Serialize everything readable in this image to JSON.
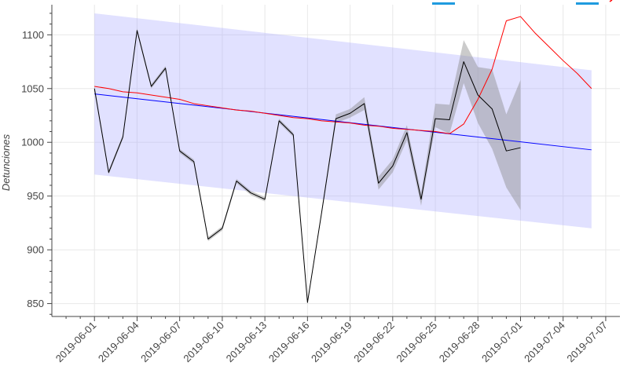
{
  "chart_data": {
    "type": "line",
    "title": "",
    "xlabel": "",
    "ylabel": "Detunciones",
    "ylim": [
      838,
      1128
    ],
    "xlim": [
      "2019-05-29",
      "2019-07-08"
    ],
    "grid": true,
    "xticks": [
      "2019-06-01",
      "2019-06-04",
      "2019-06-07",
      "2019-06-10",
      "2019-06-13",
      "2019-06-16",
      "2019-06-19",
      "2019-06-22",
      "2019-06-25",
      "2019-06-28",
      "2019-07-01",
      "2019-07-04",
      "2019-07-07"
    ],
    "yticks": [
      850,
      900,
      950,
      1000,
      1050,
      1100
    ],
    "colors": {
      "observed": "#000000",
      "observed_band": "#8c8c8c",
      "trend": "#0000ff",
      "prediction": "#ff0000",
      "interval_band": "#aaaaff",
      "legend_marker": "#1f9bdf",
      "grid": "#e8e8e8",
      "axis": "#444444"
    },
    "series": [
      {
        "key": "observed",
        "x": [
          "2019-06-01",
          "2019-06-02",
          "2019-06-03",
          "2019-06-04",
          "2019-06-05",
          "2019-06-06",
          "2019-06-07",
          "2019-06-08",
          "2019-06-09",
          "2019-06-10",
          "2019-06-11",
          "2019-06-12",
          "2019-06-13",
          "2019-06-14",
          "2019-06-15",
          "2019-06-16",
          "2019-06-17",
          "2019-06-18",
          "2019-06-19",
          "2019-06-20",
          "2019-06-21",
          "2019-06-22",
          "2019-06-23",
          "2019-06-24",
          "2019-06-25",
          "2019-06-26",
          "2019-06-27",
          "2019-06-28",
          "2019-06-29",
          "2019-06-30",
          "2019-07-01"
        ],
        "y": [
          1050,
          972,
          1005,
          1104,
          1052,
          1069,
          992,
          982,
          910,
          920,
          964,
          953,
          947,
          1020,
          1007,
          851,
          935,
          1022,
          1027,
          1036,
          962,
          978,
          1009,
          947,
          1022,
          1021,
          1075,
          1044,
          1031,
          992,
          995
        ],
        "lower": [
          1047,
          970,
          1003,
          1102,
          1050,
          1067,
          990,
          980,
          908,
          918,
          962,
          951,
          945,
          1018,
          1005,
          851,
          933,
          1018,
          1023,
          1030,
          956,
          972,
          1002,
          941,
          1014,
          1008,
          1055,
          1018,
          994,
          958,
          937
        ],
        "upper": [
          1053,
          974,
          1007,
          1106,
          1054,
          1071,
          994,
          984,
          912,
          922,
          966,
          955,
          949,
          1022,
          1009,
          851,
          937,
          1026,
          1031,
          1042,
          968,
          984,
          1016,
          953,
          1036,
          1035,
          1095,
          1070,
          1068,
          1026,
          1058
        ]
      },
      {
        "key": "trend",
        "x": [
          "2019-06-01",
          "2019-07-06"
        ],
        "y": [
          1045,
          993
        ]
      },
      {
        "key": "prediction",
        "x": [
          "2019-06-01",
          "2019-06-02",
          "2019-06-03",
          "2019-06-04",
          "2019-06-05",
          "2019-06-06",
          "2019-06-07",
          "2019-06-08",
          "2019-06-09",
          "2019-06-10",
          "2019-06-11",
          "2019-06-12",
          "2019-06-13",
          "2019-06-14",
          "2019-06-15",
          "2019-06-16",
          "2019-06-17",
          "2019-06-18",
          "2019-06-19",
          "2019-06-20",
          "2019-06-21",
          "2019-06-22",
          "2019-06-23",
          "2019-06-24",
          "2019-06-25",
          "2019-06-26",
          "2019-06-27",
          "2019-06-28",
          "2019-06-29",
          "2019-06-30",
          "2019-07-01",
          "2019-07-02",
          "2019-07-03",
          "2019-07-04",
          "2019-07-05",
          "2019-07-06"
        ],
        "y": [
          1052,
          1050,
          1047,
          1046,
          1044,
          1042,
          1040,
          1036,
          1034,
          1032,
          1030,
          1029,
          1027,
          1025,
          1023,
          1022,
          1020,
          1019,
          1018,
          1016,
          1015,
          1013,
          1012,
          1011,
          1010,
          1008,
          1017,
          1040,
          1068,
          1113,
          1117,
          1102,
          1089,
          1076,
          1064,
          1050
        ]
      },
      {
        "key": "interval",
        "x": [
          "2019-06-01",
          "2019-07-06"
        ],
        "lower": [
          970,
          920
        ],
        "upper": [
          1120,
          1067
        ]
      }
    ],
    "legend": {
      "placement": "top",
      "entries": [
        {
          "color": "#1f9bdf"
        },
        {
          "color": "#1f9bdf"
        }
      ]
    }
  }
}
